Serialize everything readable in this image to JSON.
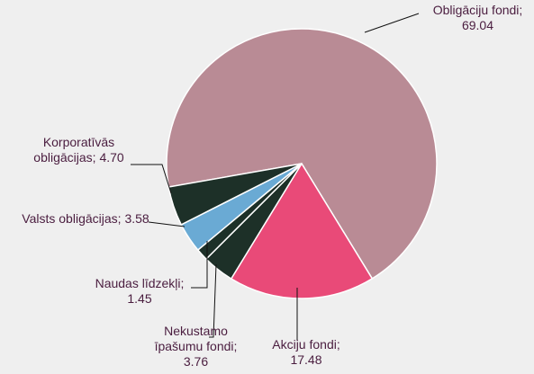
{
  "chart_data": {
    "type": "pie",
    "categories": [
      "Obligāciju fondi;",
      "Akciju fondi;",
      "Nekustamo īpašumu fondi;",
      "Naudas līdzekļi;",
      "Valsts obligācijas;",
      "Korporatīvās obligācijas;"
    ],
    "values": [
      69.04,
      17.48,
      3.76,
      1.45,
      3.58,
      4.7
    ],
    "colors": [
      "#b98b95",
      "#e94a78",
      "#1d3028",
      "#1d3028",
      "#6aaad4",
      "#1d3028"
    ]
  }
}
